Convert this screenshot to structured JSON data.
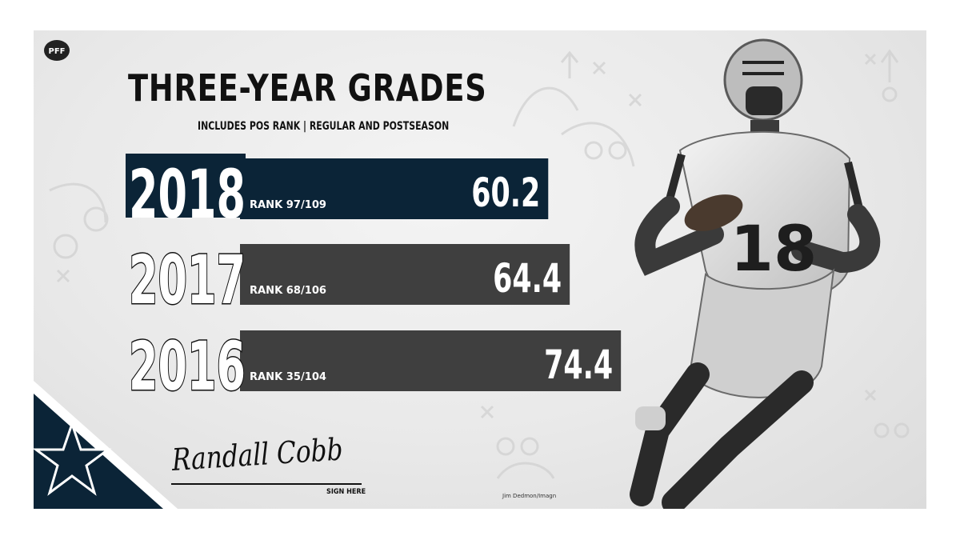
{
  "brand": {
    "logo_text": "PFF"
  },
  "header": {
    "title": "THREE-YEAR GRADES",
    "subtitle": "INCLUDES POS RANK | REGULAR AND POSTSEASON"
  },
  "chart_data": {
    "type": "bar",
    "categories": [
      "2018",
      "2017",
      "2016"
    ],
    "values": [
      60.2,
      64.4,
      74.4
    ],
    "ranks": [
      "RANK 97/109",
      "RANK 68/106",
      "RANK 35/104"
    ],
    "title": "THREE-YEAR GRADES",
    "subtitle": "INCLUDES POS RANK | REGULAR AND POSTSEASON",
    "orientation": "horizontal",
    "highlight_category": "2018",
    "colors": {
      "highlight": "#0b2437",
      "default": "#3f3f3f",
      "text": "#ffffff"
    }
  },
  "signature": {
    "name": "Randall Cobb",
    "caption": "SIGN HERE"
  },
  "photo": {
    "credit": "Jim Dedmon/Imagn",
    "jersey_number": "18"
  },
  "colors": {
    "navy": "#0b2437",
    "bar_gray": "#3f3f3f",
    "background": "#e9e9e9"
  }
}
